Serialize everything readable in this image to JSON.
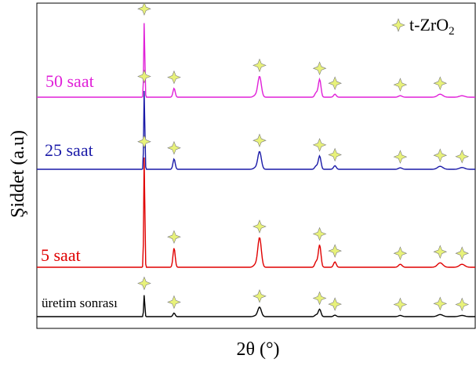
{
  "chart_data": {
    "type": "line",
    "title": "",
    "xlabel": "2θ (°)",
    "ylabel": "Şiddet (a.u)",
    "x_ticks_shown": false,
    "y_ticks_shown": false,
    "grid": false,
    "legend": {
      "position": "top-right",
      "label": "t-ZrO₂",
      "marker": "four-point-star",
      "marker_color": "#e8f27a"
    },
    "peak_positions": [
      0.245,
      0.313,
      0.508,
      0.645,
      0.68,
      0.829,
      0.92,
      0.97
    ],
    "series": [
      {
        "name": "üretim sonrası",
        "color": "#000000",
        "baseline": 0.0,
        "peak_heights": [
          0.75,
          0.12,
          0.32,
          0.25,
          0.05,
          0.04,
          0.07,
          0.04
        ],
        "marker_peaks": [
          0,
          1,
          2,
          3,
          4,
          5,
          6,
          7
        ]
      },
      {
        "name": "5 saat",
        "color": "#e00000",
        "baseline": 1.0,
        "peak_heights": [
          3.85,
          0.65,
          1.0,
          0.75,
          0.18,
          0.1,
          0.15,
          0.1
        ],
        "marker_peaks": [
          0,
          1,
          2,
          3,
          4,
          5,
          6,
          7
        ]
      },
      {
        "name": "25 saat",
        "color": "#1a1aa8",
        "baseline": 3.0,
        "peak_heights": [
          2.75,
          0.35,
          0.6,
          0.45,
          0.12,
          0.05,
          0.1,
          0.06
        ],
        "marker_peaks": [
          0,
          1,
          2,
          3,
          4,
          5,
          6,
          7
        ]
      },
      {
        "name": "50 saat",
        "color": "#e020d8",
        "baseline": 4.35,
        "peak_heights": [
          2.6,
          0.3,
          0.7,
          0.6,
          0.1,
          0.05,
          0.1,
          0.05
        ],
        "marker_peaks": [
          0,
          1,
          2,
          3,
          4,
          5,
          6
        ]
      }
    ]
  }
}
